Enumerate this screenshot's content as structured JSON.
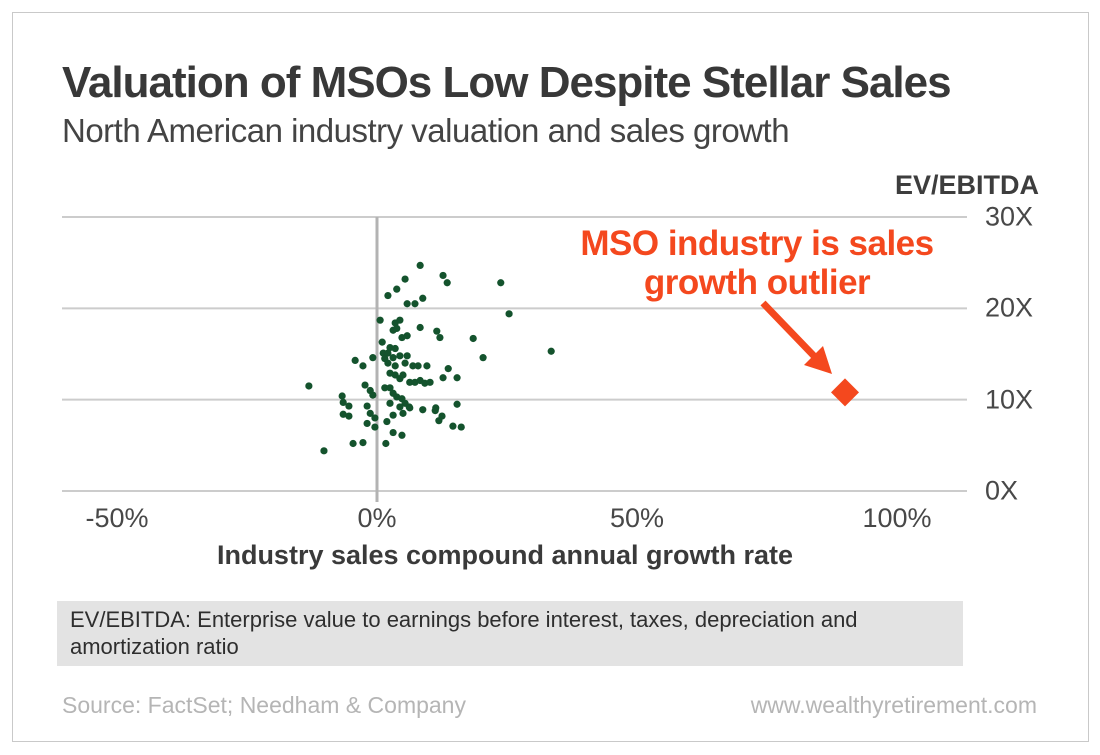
{
  "chart_data": {
    "type": "scatter",
    "title": "Valuation of MSOs Low Despite Stellar Sales",
    "subtitle": "North American industry valuation and sales growth",
    "xlabel": "Industry sales compound annual growth rate",
    "ylabel": "EV/EBITDA",
    "x_unit": "percent CAGR",
    "y_unit": "multiple (X)",
    "xlim": [
      -60,
      113
    ],
    "ylim": [
      0,
      30
    ],
    "grid": "horizontal-only",
    "zero_line_x": 0,
    "x_ticks": [
      {
        "value": -50,
        "label": "-50%"
      },
      {
        "value": 0,
        "label": "0%"
      },
      {
        "value": 50,
        "label": "50%"
      },
      {
        "value": 100,
        "label": "100%"
      }
    ],
    "y_ticks": [
      {
        "value": 30,
        "label": "30X"
      },
      {
        "value": 20,
        "label": "20X"
      },
      {
        "value": 10,
        "label": "10X"
      },
      {
        "value": 0,
        "label": "0X"
      }
    ],
    "series": [
      {
        "name": "North American industries",
        "marker": "circle",
        "color": "#14532d",
        "points": [
          [
            8.3,
            24.7
          ],
          [
            5.4,
            23.2
          ],
          [
            12.7,
            23.6
          ],
          [
            13.5,
            22.8
          ],
          [
            23.8,
            22.8
          ],
          [
            3.8,
            22.1
          ],
          [
            2.1,
            21.4
          ],
          [
            5.8,
            20.5
          ],
          [
            7.3,
            20.5
          ],
          [
            8.8,
            21.1
          ],
          [
            0.6,
            18.7
          ],
          [
            3.5,
            18.4
          ],
          [
            4.4,
            18.7
          ],
          [
            25.4,
            19.4
          ],
          [
            3.1,
            17.6
          ],
          [
            3.8,
            17.8
          ],
          [
            8.3,
            17.9
          ],
          [
            11.5,
            17.5
          ],
          [
            12.1,
            16.8
          ],
          [
            18.5,
            16.7
          ],
          [
            4.8,
            16.8
          ],
          [
            5.8,
            17.0
          ],
          [
            1.0,
            16.3
          ],
          [
            2.5,
            15.7
          ],
          [
            3.5,
            15.6
          ],
          [
            33.5,
            15.3
          ],
          [
            1.2,
            15.1
          ],
          [
            2.1,
            15.1
          ],
          [
            -0.8,
            14.6
          ],
          [
            3.1,
            14.6
          ],
          [
            4.4,
            14.8
          ],
          [
            5.8,
            14.8
          ],
          [
            20.4,
            14.6
          ],
          [
            -4.2,
            14.3
          ],
          [
            -2.7,
            13.7
          ],
          [
            1.5,
            14.5
          ],
          [
            2.1,
            14.0
          ],
          [
            3.5,
            13.7
          ],
          [
            5.4,
            14.0
          ],
          [
            6.9,
            13.7
          ],
          [
            7.9,
            13.7
          ],
          [
            9.6,
            13.7
          ],
          [
            13.7,
            13.4
          ],
          [
            2.5,
            12.9
          ],
          [
            3.5,
            12.7
          ],
          [
            4.4,
            12.3
          ],
          [
            5.0,
            12.7
          ],
          [
            12.7,
            12.4
          ],
          [
            15.4,
            12.4
          ],
          [
            6.3,
            11.9
          ],
          [
            7.3,
            11.9
          ],
          [
            8.3,
            12.1
          ],
          [
            9.2,
            11.8
          ],
          [
            10.2,
            11.9
          ],
          [
            -13.1,
            11.5
          ],
          [
            -6.7,
            10.4
          ],
          [
            -2.3,
            11.6
          ],
          [
            -1.3,
            11.0
          ],
          [
            -0.8,
            10.5
          ],
          [
            1.5,
            11.3
          ],
          [
            2.5,
            11.3
          ],
          [
            3.1,
            10.7
          ],
          [
            3.8,
            10.3
          ],
          [
            4.8,
            10.1
          ],
          [
            5.4,
            9.6
          ],
          [
            6.3,
            9.1
          ],
          [
            -6.5,
            9.7
          ],
          [
            -5.4,
            9.3
          ],
          [
            -1.9,
            9.3
          ],
          [
            2.5,
            9.6
          ],
          [
            4.4,
            9.2
          ],
          [
            6.2,
            9.2
          ],
          [
            8.8,
            8.9
          ],
          [
            11.3,
            9.1
          ],
          [
            15.4,
            9.5
          ],
          [
            -6.5,
            8.4
          ],
          [
            -5.4,
            8.2
          ],
          [
            -1.3,
            8.5
          ],
          [
            -0.4,
            8.0
          ],
          [
            3.1,
            8.3
          ],
          [
            5.0,
            8.5
          ],
          [
            12.5,
            8.2
          ],
          [
            11.2,
            8.8
          ],
          [
            -1.9,
            7.4
          ],
          [
            -0.4,
            7.0
          ],
          [
            1.9,
            7.6
          ],
          [
            11.9,
            7.7
          ],
          [
            14.6,
            7.1
          ],
          [
            16.2,
            7.0
          ],
          [
            3.1,
            6.4
          ],
          [
            4.8,
            6.1
          ],
          [
            -4.6,
            5.2
          ],
          [
            -2.7,
            5.3
          ],
          [
            1.7,
            5.2
          ],
          [
            -10.2,
            4.4
          ]
        ]
      },
      {
        "name": "MSO industry",
        "marker": "diamond",
        "color": "#f4481e",
        "points": [
          [
            90,
            10.8
          ]
        ]
      }
    ],
    "annotation": {
      "lines": [
        "MSO industry is sales",
        "growth outlier"
      ],
      "color": "#f4481e",
      "arrow_points_to": "MSO industry diamond marker"
    }
  },
  "footnote": {
    "lines": [
      "EV/EBITDA: Enterprise value to earnings before interest, taxes, depreciation and",
      "amortization ratio"
    ]
  },
  "source": {
    "left": "Source: FactSet; Needham & Company",
    "right": "www.wealthyretirement.com"
  },
  "colors": {
    "accent_orange": "#f4481e",
    "dot_green": "#14532d",
    "gridline": "#cccccc",
    "zero_line": "#b3b3b3",
    "frame_border": "#c9c9c9",
    "footnote_bg": "#e3e3e3",
    "source_text": "#b5b5b5",
    "title_text": "#383838"
  }
}
